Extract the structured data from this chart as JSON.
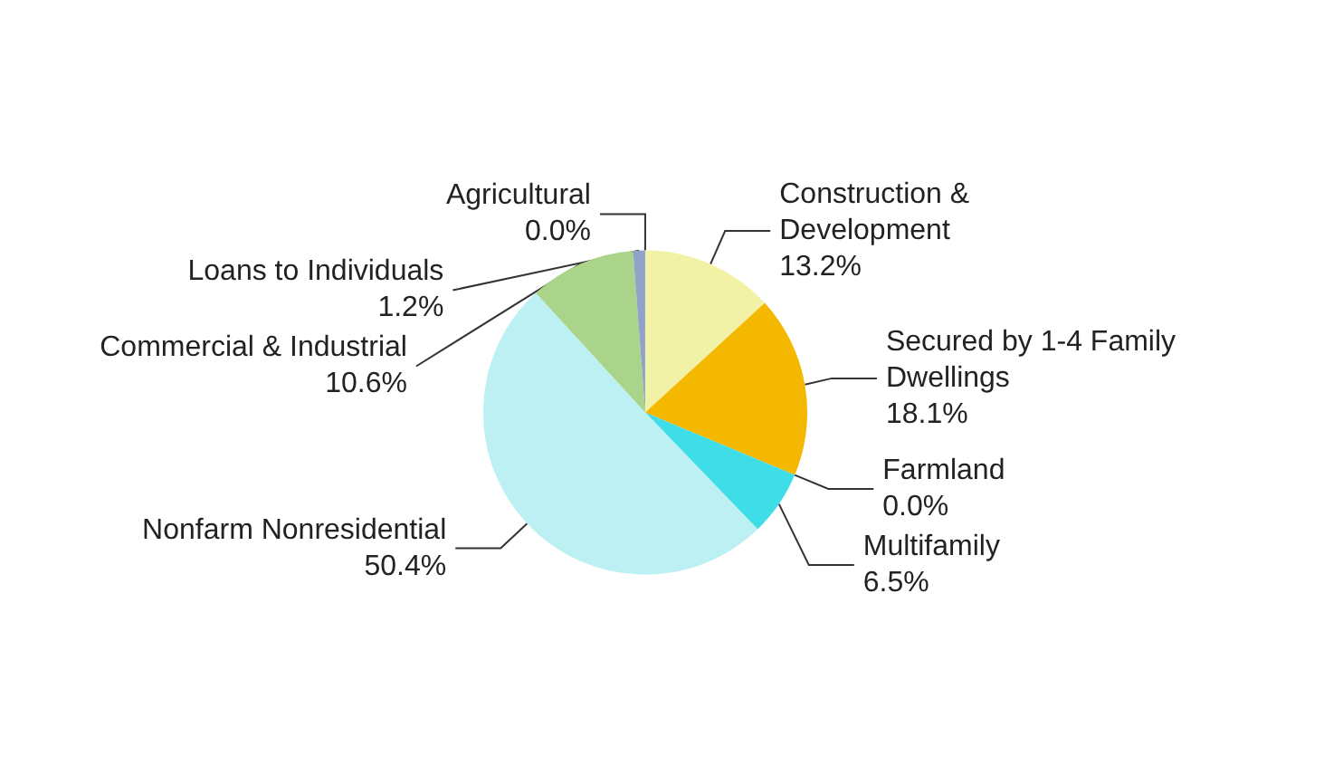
{
  "chart_data": {
    "type": "pie",
    "categories": [
      "Agricultural",
      "Construction & Development",
      "Secured by 1-4 Family Dwellings",
      "Farmland",
      "Multifamily",
      "Nonfarm Nonresidential",
      "Commercial & Industrial",
      "Loans to Individuals"
    ],
    "values": [
      0.0,
      13.2,
      18.1,
      0.0,
      6.5,
      50.4,
      10.6,
      1.2
    ],
    "value_labels": [
      "0.0%",
      "13.2%",
      "18.1%",
      "0.0%",
      "6.5%",
      "50.4%",
      "10.6%",
      "1.2%"
    ],
    "colors": [
      "#7f7f7f",
      "#f2f2a6",
      "#f5b800",
      "#2e8b8b",
      "#3fdde8",
      "#bdf0f2",
      "#a9d48a",
      "#8fa3c8"
    ]
  }
}
